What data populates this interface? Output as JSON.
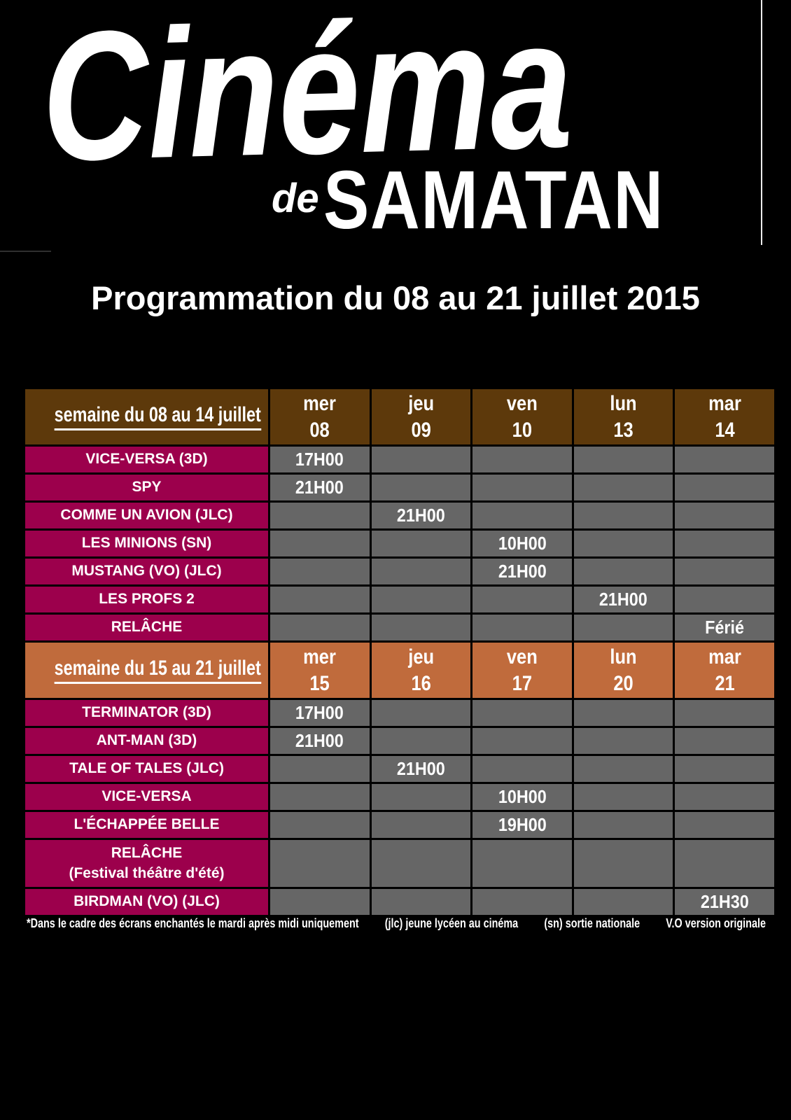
{
  "logo": {
    "word1": "Cinéma",
    "word2_small": "de",
    "word2_big": "SAMATAN"
  },
  "page_title": "Programmation du 08 au 21 juillet 2015",
  "colors": {
    "page_bg": "#000000",
    "header1_bg": "#5d390b",
    "header2_bg": "#c06b3c",
    "film_bg": "#9c004c",
    "cell_bg": "#666666",
    "text": "#ffffff"
  },
  "weeks": [
    {
      "label": "semaine du 08 au 14 juillet",
      "header_bg": "#5d390b",
      "days": [
        {
          "name": "mer",
          "num": "08"
        },
        {
          "name": "jeu",
          "num": "09"
        },
        {
          "name": "ven",
          "num": "10"
        },
        {
          "name": "lun",
          "num": "13"
        },
        {
          "name": "mar",
          "num": "14"
        }
      ],
      "rows": [
        {
          "title": "VICE-VERSA (3D)",
          "cells": [
            "17H00",
            "",
            "",
            "",
            ""
          ]
        },
        {
          "title": "SPY",
          "cells": [
            "21H00",
            "",
            "",
            "",
            ""
          ]
        },
        {
          "title": "COMME UN AVION (JLC)",
          "cells": [
            "",
            "21H00",
            "",
            "",
            ""
          ]
        },
        {
          "title": "LES MINIONS (SN)",
          "cells": [
            "",
            "",
            "10H00",
            "",
            ""
          ]
        },
        {
          "title": "MUSTANG (VO) (JLC)",
          "cells": [
            "",
            "",
            "21H00",
            "",
            ""
          ]
        },
        {
          "title": "LES PROFS 2",
          "cells": [
            "",
            "",
            "",
            "21H00",
            ""
          ]
        },
        {
          "title": "RELÂCHE",
          "cells": [
            "",
            "",
            "",
            "",
            "Férié"
          ]
        }
      ]
    },
    {
      "label": "semaine du 15 au 21 juillet",
      "header_bg": "#c06b3c",
      "days": [
        {
          "name": "mer",
          "num": "15"
        },
        {
          "name": "jeu",
          "num": "16"
        },
        {
          "name": "ven",
          "num": "17"
        },
        {
          "name": "lun",
          "num": "20"
        },
        {
          "name": "mar",
          "num": "21"
        }
      ],
      "rows": [
        {
          "title": "TERMINATOR (3D)",
          "cells": [
            "17H00",
            "",
            "",
            "",
            ""
          ]
        },
        {
          "title": "ANT-MAN (3D)",
          "cells": [
            "21H00",
            "",
            "",
            "",
            ""
          ]
        },
        {
          "title": "TALE OF TALES (JLC)",
          "cells": [
            "",
            "21H00",
            "",
            "",
            ""
          ]
        },
        {
          "title": "VICE-VERSA",
          "cells": [
            "",
            "",
            "10H00",
            "",
            ""
          ]
        },
        {
          "title": "L'ÉCHAPPÉE BELLE",
          "cells": [
            "",
            "",
            "19H00",
            "",
            ""
          ]
        },
        {
          "title": "RELÂCHE",
          "subtitle": "(Festival théâtre d'été)",
          "cells": [
            "",
            "",
            "",
            "",
            ""
          ]
        },
        {
          "title": "BIRDMAN (VO) (JLC)",
          "cells": [
            "",
            "",
            "",
            "",
            "21H30"
          ]
        }
      ]
    }
  ],
  "footnotes": [
    "*Dans le cadre des écrans enchantés le mardi après midi uniquement",
    "(jlc) jeune lycéen au cinéma",
    "(sn) sortie nationale",
    "V.O  version originale"
  ]
}
